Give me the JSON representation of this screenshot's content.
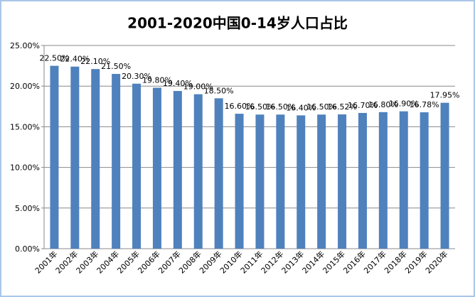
{
  "chart_data": {
    "type": "bar",
    "title": "2001-2020中国0-14岁人口占比",
    "categories": [
      "2001年",
      "2002年",
      "2003年",
      "2004年",
      "2005年",
      "2006年",
      "2007年",
      "2008年",
      "2009年",
      "2010年",
      "2011年",
      "2012年",
      "2013年",
      "2014年",
      "2015年",
      "2016年",
      "2017年",
      "2018年",
      "2019年",
      "2020年"
    ],
    "values": [
      22.5,
      22.4,
      22.1,
      21.5,
      20.3,
      19.8,
      19.4,
      19.0,
      18.5,
      16.6,
      16.5,
      16.5,
      16.4,
      16.5,
      16.52,
      16.7,
      16.8,
      16.9,
      16.78,
      17.95
    ],
    "value_labels": [
      "22.50%",
      "22.40%",
      "22.10%",
      "21.50%",
      "20.30%",
      "19.80%",
      "19.40%",
      "19.00%",
      "18.50%",
      "16.60%",
      "16.50%",
      "16.50%",
      "16.40%",
      "16.50%",
      "16.52%",
      "16.70%",
      "16.80%",
      "16.90%",
      "16.78%",
      "17.95%"
    ],
    "color": "#4f81bd",
    "ylim": [
      0,
      25
    ],
    "yticks": [
      {
        "value": 0,
        "label": "0.00%"
      },
      {
        "value": 5,
        "label": "5.00%"
      },
      {
        "value": 10,
        "label": "10.00%"
      },
      {
        "value": 15,
        "label": "15.00%"
      },
      {
        "value": 20,
        "label": "20.00%"
      },
      {
        "value": 25,
        "label": "25.00%"
      }
    ],
    "grid": true
  }
}
